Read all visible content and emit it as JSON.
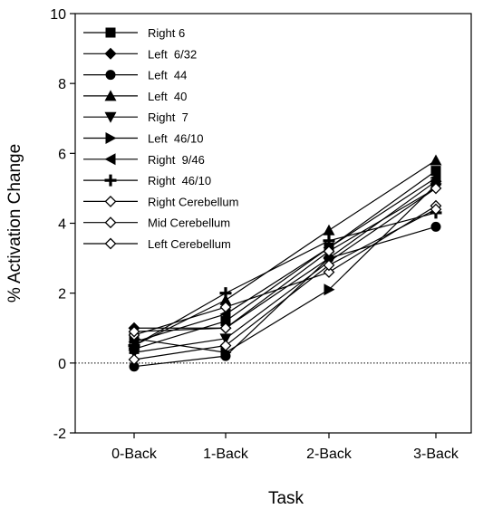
{
  "chart_data": {
    "type": "line",
    "title": "",
    "xlabel": "Task",
    "ylabel": "% Activation Change",
    "categories": [
      "0-Back",
      "1-Back",
      "2-Back",
      "3-Back"
    ],
    "ylim": [
      -2,
      10
    ],
    "yticks": [
      -2,
      0,
      2,
      4,
      6,
      8,
      10
    ],
    "ytick_labels": [
      "-2",
      "0",
      "2",
      "4",
      "6",
      "8",
      "10"
    ],
    "reference_line": {
      "y": 0,
      "style": "dotted"
    },
    "grid": false,
    "legend_placement": "top-left",
    "series": [
      {
        "name": "Right 6",
        "marker": "square",
        "values": [
          0.4,
          1.2,
          3.3,
          5.5
        ]
      },
      {
        "name": "Left  6/32",
        "marker": "diamond",
        "values": [
          1.0,
          1.0,
          3.0,
          5.2
        ]
      },
      {
        "name": "Left  44",
        "marker": "circle",
        "values": [
          -0.1,
          0.2,
          3.0,
          3.9
        ]
      },
      {
        "name": "Left  40",
        "marker": "triangle-up",
        "values": [
          0.5,
          1.8,
          3.8,
          5.8
        ]
      },
      {
        "name": "Right  7",
        "marker": "triangle-down",
        "values": [
          0.3,
          0.7,
          2.9,
          5.0
        ]
      },
      {
        "name": "Left  46/10",
        "marker": "triangle-right",
        "values": [
          0.7,
          0.3,
          2.1,
          5.1
        ]
      },
      {
        "name": "Right  9/46",
        "marker": "triangle-left",
        "values": [
          0.6,
          1.4,
          3.3,
          5.3
        ]
      },
      {
        "name": "Right  46/10",
        "marker": "plus",
        "values": [
          0.5,
          2.0,
          3.5,
          4.3
        ]
      },
      {
        "name": "Right Cerebellum",
        "marker": "diamond-open",
        "values": [
          0.8,
          1.6,
          2.6,
          4.5
        ]
      },
      {
        "name": "Mid Cerebellum",
        "marker": "diamond-open",
        "values": [
          0.1,
          0.5,
          2.8,
          4.4
        ]
      },
      {
        "name": "Left Cerebellum",
        "marker": "diamond-open",
        "values": [
          0.9,
          1.0,
          3.2,
          5.0
        ]
      }
    ]
  }
}
